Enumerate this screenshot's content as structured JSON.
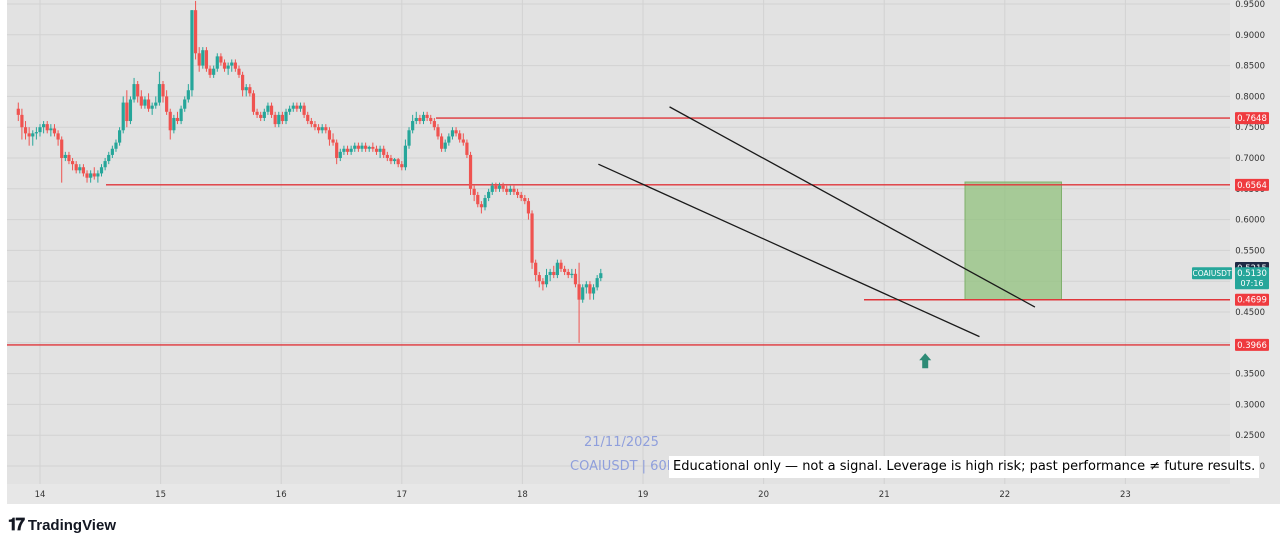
{
  "chart_data": {
    "type": "candlestick",
    "symbol": "COAIUSDT",
    "ylim": [
      0.18,
      0.96
    ],
    "y_ticks": [
      "0.9500",
      "0.9000",
      "0.8500",
      "0.8000",
      "0.7500",
      "0.7000",
      "0.6500",
      "0.6000",
      "0.5500",
      "0.5000",
      "0.4500",
      "0.4000",
      "0.3500",
      "0.3000",
      "0.2500",
      "0.2000"
    ],
    "x_ticks": [
      "14",
      "15",
      "16",
      "17",
      "18",
      "19",
      "20",
      "21",
      "22",
      "23"
    ],
    "horizontal_levels": [
      {
        "value": 0.7648,
        "label": "0.7648"
      },
      {
        "value": 0.6564,
        "label": "0.6564"
      },
      {
        "value": 0.4699,
        "label": "0.4699"
      },
      {
        "value": 0.3966,
        "label": "0.3966"
      }
    ],
    "price_labels": {
      "high_label": "0.5215",
      "last_price": "0.5130",
      "countdown": "07:16",
      "symbol_tag": "COAIUSDT"
    },
    "channel_lines": [
      {
        "from": {
          "day": 19.22,
          "price": 0.783
        },
        "to": {
          "day": 22.25,
          "price": 0.458
        }
      },
      {
        "from": {
          "day": 18.63,
          "price": 0.69
        },
        "to": {
          "day": 21.79,
          "price": 0.41
        }
      }
    ],
    "target_zone": {
      "from_day": 21.67,
      "to_day": 22.47,
      "low": 0.4699,
      "high": 0.661
    },
    "signal_arrow": {
      "day": 21.34,
      "price": 0.37
    },
    "annotations": {
      "date": "21/11/2025",
      "watermark": "COAIUSDT | 60M",
      "disclaimer": "Educational only — not a signal. Leverage is high risk; past performance ≠ future results."
    },
    "candles": [
      [
        13.82,
        0.78,
        0.79,
        0.76,
        0.77
      ],
      [
        13.85,
        0.77,
        0.78,
        0.73,
        0.75
      ],
      [
        13.88,
        0.75,
        0.76,
        0.73,
        0.74
      ],
      [
        13.91,
        0.74,
        0.75,
        0.72,
        0.735
      ],
      [
        13.94,
        0.735,
        0.745,
        0.72,
        0.74
      ],
      [
        13.97,
        0.74,
        0.75,
        0.73,
        0.742
      ],
      [
        14.0,
        0.742,
        0.755,
        0.735,
        0.75
      ],
      [
        14.03,
        0.75,
        0.76,
        0.74,
        0.755
      ],
      [
        14.06,
        0.755,
        0.76,
        0.74,
        0.745
      ],
      [
        14.09,
        0.745,
        0.755,
        0.735,
        0.748
      ],
      [
        14.12,
        0.748,
        0.755,
        0.735,
        0.74
      ],
      [
        14.15,
        0.74,
        0.745,
        0.72,
        0.73
      ],
      [
        14.18,
        0.73,
        0.735,
        0.66,
        0.7
      ],
      [
        14.21,
        0.7,
        0.71,
        0.695,
        0.705
      ],
      [
        14.24,
        0.705,
        0.71,
        0.69,
        0.695
      ],
      [
        14.27,
        0.695,
        0.7,
        0.68,
        0.69
      ],
      [
        14.3,
        0.69,
        0.695,
        0.675,
        0.68
      ],
      [
        14.33,
        0.68,
        0.69,
        0.675,
        0.685
      ],
      [
        14.36,
        0.685,
        0.69,
        0.67,
        0.675
      ],
      [
        14.39,
        0.675,
        0.68,
        0.66,
        0.668
      ],
      [
        14.42,
        0.668,
        0.68,
        0.66,
        0.675
      ],
      [
        14.45,
        0.675,
        0.685,
        0.665,
        0.67
      ],
      [
        14.48,
        0.67,
        0.68,
        0.66,
        0.675
      ],
      [
        14.51,
        0.675,
        0.69,
        0.67,
        0.685
      ],
      [
        14.54,
        0.685,
        0.7,
        0.68,
        0.695
      ],
      [
        14.57,
        0.695,
        0.71,
        0.69,
        0.705
      ],
      [
        14.6,
        0.705,
        0.72,
        0.7,
        0.715
      ],
      [
        14.63,
        0.715,
        0.73,
        0.71,
        0.725
      ],
      [
        14.66,
        0.725,
        0.75,
        0.72,
        0.745
      ],
      [
        14.69,
        0.745,
        0.8,
        0.74,
        0.79
      ],
      [
        14.72,
        0.79,
        0.81,
        0.75,
        0.76
      ],
      [
        14.75,
        0.76,
        0.8,
        0.755,
        0.795
      ],
      [
        14.78,
        0.795,
        0.83,
        0.79,
        0.82
      ],
      [
        14.81,
        0.82,
        0.825,
        0.79,
        0.8
      ],
      [
        14.84,
        0.8,
        0.81,
        0.78,
        0.785
      ],
      [
        14.87,
        0.785,
        0.8,
        0.78,
        0.795
      ],
      [
        14.9,
        0.795,
        0.805,
        0.775,
        0.78
      ],
      [
        14.93,
        0.78,
        0.79,
        0.77,
        0.785
      ],
      [
        14.96,
        0.785,
        0.8,
        0.78,
        0.79
      ],
      [
        14.99,
        0.79,
        0.84,
        0.785,
        0.82
      ],
      [
        15.02,
        0.82,
        0.825,
        0.79,
        0.8
      ],
      [
        15.05,
        0.8,
        0.81,
        0.77,
        0.775
      ],
      [
        15.08,
        0.775,
        0.78,
        0.73,
        0.745
      ],
      [
        15.11,
        0.745,
        0.77,
        0.74,
        0.765
      ],
      [
        15.14,
        0.765,
        0.775,
        0.755,
        0.76
      ],
      [
        15.17,
        0.76,
        0.785,
        0.755,
        0.78
      ],
      [
        15.2,
        0.78,
        0.8,
        0.775,
        0.795
      ],
      [
        15.23,
        0.795,
        0.82,
        0.79,
        0.81
      ],
      [
        15.26,
        0.81,
        0.94,
        0.8,
        0.94
      ],
      [
        15.29,
        0.94,
        0.955,
        0.86,
        0.87
      ],
      [
        15.32,
        0.87,
        0.88,
        0.84,
        0.85
      ],
      [
        15.35,
        0.85,
        0.88,
        0.845,
        0.875
      ],
      [
        15.38,
        0.875,
        0.88,
        0.84,
        0.845
      ],
      [
        15.41,
        0.845,
        0.85,
        0.83,
        0.835
      ],
      [
        15.44,
        0.835,
        0.85,
        0.83,
        0.845
      ],
      [
        15.47,
        0.845,
        0.87,
        0.84,
        0.865
      ],
      [
        15.5,
        0.865,
        0.87,
        0.85,
        0.855
      ],
      [
        15.53,
        0.855,
        0.86,
        0.84,
        0.845
      ],
      [
        15.56,
        0.845,
        0.855,
        0.835,
        0.85
      ],
      [
        15.59,
        0.85,
        0.86,
        0.84,
        0.855
      ],
      [
        15.62,
        0.855,
        0.86,
        0.84,
        0.845
      ],
      [
        15.65,
        0.845,
        0.85,
        0.83,
        0.835
      ],
      [
        15.68,
        0.835,
        0.84,
        0.8,
        0.81
      ],
      [
        15.71,
        0.81,
        0.82,
        0.8,
        0.815
      ],
      [
        15.74,
        0.815,
        0.82,
        0.8,
        0.805
      ],
      [
        15.77,
        0.805,
        0.81,
        0.77,
        0.775
      ],
      [
        15.8,
        0.775,
        0.78,
        0.765,
        0.77
      ],
      [
        15.83,
        0.77,
        0.775,
        0.76,
        0.765
      ],
      [
        15.86,
        0.765,
        0.78,
        0.76,
        0.775
      ],
      [
        15.89,
        0.775,
        0.79,
        0.77,
        0.785
      ],
      [
        15.92,
        0.785,
        0.79,
        0.765,
        0.77
      ],
      [
        15.95,
        0.77,
        0.775,
        0.75,
        0.755
      ],
      [
        15.98,
        0.755,
        0.775,
        0.75,
        0.77
      ],
      [
        16.01,
        0.77,
        0.775,
        0.755,
        0.76
      ],
      [
        16.04,
        0.76,
        0.78,
        0.755,
        0.775
      ],
      [
        16.07,
        0.775,
        0.785,
        0.77,
        0.78
      ],
      [
        16.1,
        0.78,
        0.79,
        0.775,
        0.785
      ],
      [
        16.13,
        0.785,
        0.79,
        0.775,
        0.78
      ],
      [
        16.16,
        0.78,
        0.79,
        0.775,
        0.785
      ],
      [
        16.19,
        0.785,
        0.79,
        0.765,
        0.77
      ],
      [
        16.22,
        0.77,
        0.775,
        0.755,
        0.76
      ],
      [
        16.25,
        0.76,
        0.765,
        0.75,
        0.755
      ],
      [
        16.28,
        0.755,
        0.76,
        0.745,
        0.75
      ],
      [
        16.31,
        0.75,
        0.755,
        0.74,
        0.745
      ],
      [
        16.34,
        0.745,
        0.755,
        0.74,
        0.75
      ],
      [
        16.37,
        0.75,
        0.755,
        0.74,
        0.745
      ],
      [
        16.4,
        0.745,
        0.75,
        0.72,
        0.73
      ],
      [
        16.43,
        0.73,
        0.74,
        0.72,
        0.725
      ],
      [
        16.46,
        0.725,
        0.73,
        0.69,
        0.7
      ],
      [
        16.49,
        0.7,
        0.715,
        0.695,
        0.71
      ],
      [
        16.52,
        0.71,
        0.72,
        0.705,
        0.715
      ],
      [
        16.55,
        0.715,
        0.72,
        0.705,
        0.71
      ],
      [
        16.58,
        0.71,
        0.72,
        0.705,
        0.715
      ],
      [
        16.61,
        0.715,
        0.725,
        0.71,
        0.72
      ],
      [
        16.64,
        0.72,
        0.725,
        0.71,
        0.715
      ],
      [
        16.67,
        0.715,
        0.725,
        0.71,
        0.72
      ],
      [
        16.7,
        0.72,
        0.725,
        0.71,
        0.715
      ],
      [
        16.73,
        0.715,
        0.72,
        0.71,
        0.718
      ],
      [
        16.76,
        0.718,
        0.725,
        0.71,
        0.715
      ],
      [
        16.79,
        0.715,
        0.72,
        0.705,
        0.71
      ],
      [
        16.82,
        0.71,
        0.72,
        0.7,
        0.715
      ],
      [
        16.85,
        0.715,
        0.72,
        0.7,
        0.705
      ],
      [
        16.88,
        0.705,
        0.71,
        0.695,
        0.7
      ],
      [
        16.91,
        0.7,
        0.705,
        0.69,
        0.695
      ],
      [
        16.94,
        0.695,
        0.7,
        0.69,
        0.698
      ],
      [
        16.97,
        0.698,
        0.7,
        0.685,
        0.69
      ],
      [
        17.0,
        0.69,
        0.695,
        0.68,
        0.685
      ],
      [
        17.03,
        0.685,
        0.73,
        0.68,
        0.72
      ],
      [
        17.06,
        0.72,
        0.75,
        0.715,
        0.745
      ],
      [
        17.09,
        0.745,
        0.77,
        0.74,
        0.76
      ],
      [
        17.12,
        0.76,
        0.775,
        0.755,
        0.765
      ],
      [
        17.15,
        0.765,
        0.77,
        0.755,
        0.76
      ],
      [
        17.18,
        0.76,
        0.775,
        0.755,
        0.77
      ],
      [
        17.21,
        0.77,
        0.775,
        0.76,
        0.765
      ],
      [
        17.24,
        0.765,
        0.77,
        0.755,
        0.76
      ],
      [
        17.27,
        0.76,
        0.765,
        0.745,
        0.75
      ],
      [
        17.3,
        0.75,
        0.755,
        0.73,
        0.735
      ],
      [
        17.33,
        0.735,
        0.74,
        0.71,
        0.715
      ],
      [
        17.36,
        0.715,
        0.73,
        0.71,
        0.725
      ],
      [
        17.39,
        0.725,
        0.74,
        0.72,
        0.735
      ],
      [
        17.42,
        0.735,
        0.75,
        0.73,
        0.745
      ],
      [
        17.45,
        0.745,
        0.75,
        0.735,
        0.74
      ],
      [
        17.48,
        0.74,
        0.745,
        0.725,
        0.73
      ],
      [
        17.51,
        0.73,
        0.74,
        0.72,
        0.725
      ],
      [
        17.54,
        0.725,
        0.73,
        0.7,
        0.705
      ],
      [
        17.57,
        0.705,
        0.71,
        0.64,
        0.65
      ],
      [
        17.6,
        0.65,
        0.655,
        0.63,
        0.64
      ],
      [
        17.63,
        0.64,
        0.645,
        0.62,
        0.625
      ],
      [
        17.66,
        0.625,
        0.63,
        0.61,
        0.62
      ],
      [
        17.69,
        0.62,
        0.64,
        0.615,
        0.635
      ],
      [
        17.72,
        0.635,
        0.65,
        0.63,
        0.645
      ],
      [
        17.75,
        0.645,
        0.66,
        0.64,
        0.655
      ],
      [
        17.78,
        0.655,
        0.66,
        0.645,
        0.65
      ],
      [
        17.81,
        0.65,
        0.66,
        0.645,
        0.655
      ],
      [
        17.84,
        0.655,
        0.66,
        0.645,
        0.65
      ],
      [
        17.87,
        0.65,
        0.655,
        0.64,
        0.645
      ],
      [
        17.9,
        0.645,
        0.655,
        0.64,
        0.65
      ],
      [
        17.93,
        0.65,
        0.655,
        0.64,
        0.645
      ],
      [
        17.96,
        0.645,
        0.65,
        0.635,
        0.64
      ],
      [
        17.99,
        0.64,
        0.645,
        0.63,
        0.635
      ],
      [
        18.02,
        0.635,
        0.64,
        0.625,
        0.63
      ],
      [
        18.05,
        0.63,
        0.635,
        0.6,
        0.61
      ],
      [
        18.08,
        0.61,
        0.615,
        0.52,
        0.53
      ],
      [
        18.11,
        0.53,
        0.535,
        0.5,
        0.51
      ],
      [
        18.14,
        0.51,
        0.515,
        0.49,
        0.5
      ],
      [
        18.17,
        0.5,
        0.505,
        0.485,
        0.495
      ],
      [
        18.2,
        0.495,
        0.52,
        0.49,
        0.51
      ],
      [
        18.23,
        0.51,
        0.52,
        0.5,
        0.515
      ],
      [
        18.26,
        0.515,
        0.525,
        0.505,
        0.51
      ],
      [
        18.29,
        0.51,
        0.535,
        0.505,
        0.53
      ],
      [
        18.32,
        0.53,
        0.535,
        0.515,
        0.52
      ],
      [
        18.35,
        0.52,
        0.525,
        0.51,
        0.515
      ],
      [
        18.38,
        0.515,
        0.52,
        0.505,
        0.51
      ],
      [
        18.41,
        0.51,
        0.52,
        0.505,
        0.512
      ],
      [
        18.44,
        0.512,
        0.52,
        0.49,
        0.495
      ],
      [
        18.47,
        0.495,
        0.53,
        0.4,
        0.47
      ],
      [
        18.5,
        0.47,
        0.495,
        0.465,
        0.49
      ],
      [
        18.53,
        0.49,
        0.5,
        0.48,
        0.495
      ],
      [
        18.56,
        0.495,
        0.5,
        0.47,
        0.48
      ],
      [
        18.59,
        0.48,
        0.495,
        0.47,
        0.49
      ],
      [
        18.62,
        0.49,
        0.51,
        0.485,
        0.505
      ],
      [
        18.65,
        0.505,
        0.52,
        0.5,
        0.513
      ]
    ]
  }
}
